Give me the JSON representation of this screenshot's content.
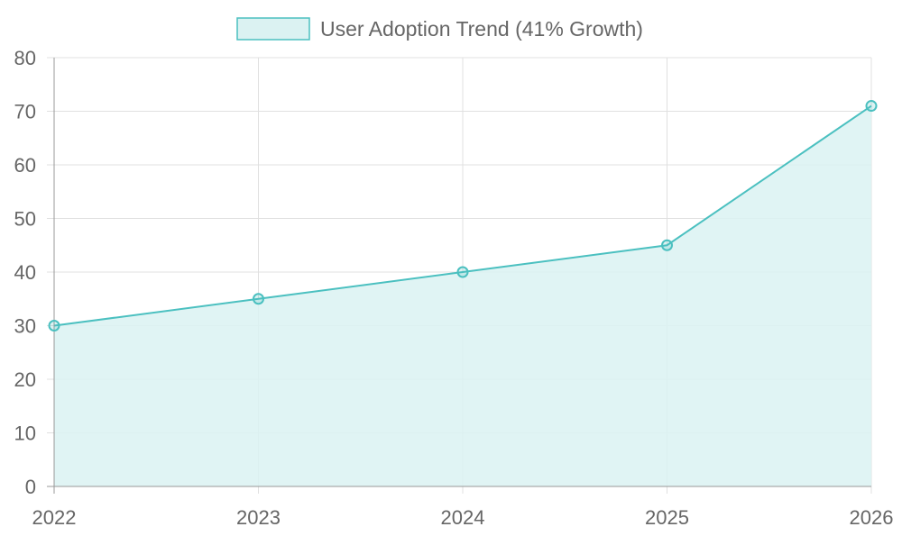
{
  "chart_data": {
    "type": "area",
    "title": "",
    "xlabel": "",
    "ylabel": "",
    "categories": [
      "2022",
      "2023",
      "2024",
      "2025",
      "2026"
    ],
    "series": [
      {
        "name": "User Adoption Trend (41% Growth)",
        "values": [
          30,
          35,
          40,
          45,
          71
        ]
      }
    ],
    "ylim": [
      0,
      80
    ],
    "yticks": [
      0,
      10,
      20,
      30,
      40,
      50,
      60,
      70,
      80
    ],
    "grid": true,
    "legend": "top",
    "colors": {
      "line": "#4bc0c0",
      "fill": "#dbf2f2",
      "grid": "#e0e0e0",
      "axis": "#999999"
    }
  }
}
